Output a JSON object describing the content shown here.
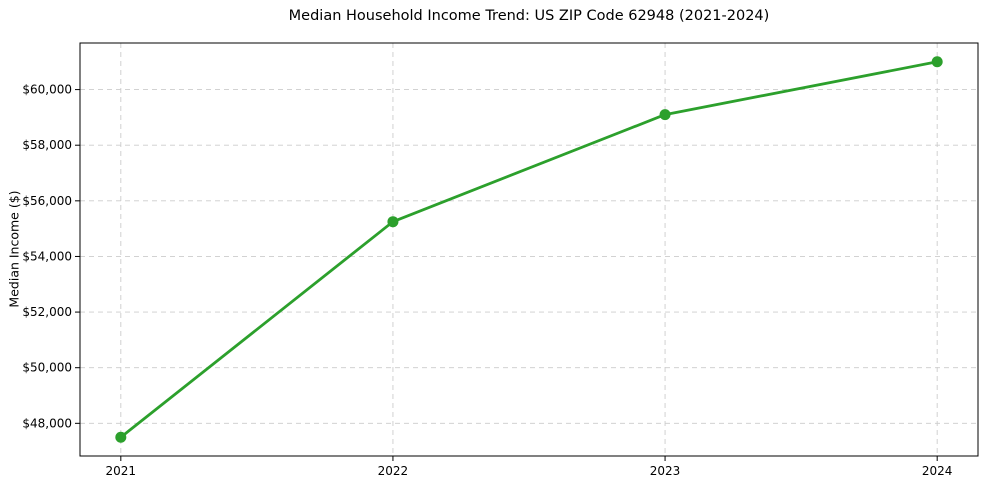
{
  "figure": {
    "background": "#ffffff",
    "frame_color": "#000000"
  },
  "chart_data": {
    "type": "line",
    "title": "Median Household Income Trend: US ZIP Code 62948 (2021-2024)",
    "xlabel": "",
    "ylabel": "Median Income ($)",
    "x": [
      2021,
      2022,
      2023,
      2024
    ],
    "x_tick_labels": [
      "2021",
      "2022",
      "2023",
      "2024"
    ],
    "series": [
      {
        "name": "Median Household Income",
        "values": [
          47500,
          55250,
          59100,
          61000
        ],
        "color": "#2ca02c",
        "marker": "circle",
        "marker_radius": 5.5,
        "line_width": 2.8
      }
    ],
    "xlim": [
      2020.85,
      2024.15
    ],
    "ylim": [
      46825,
      61675
    ],
    "yticks": [
      48000,
      50000,
      52000,
      54000,
      56000,
      58000,
      60000
    ],
    "y_tick_labels": [
      "$48,000",
      "$50,000",
      "$52,000",
      "$54,000",
      "$56,000",
      "$58,000",
      "$60,000"
    ],
    "grid": true,
    "grid_style": "dashed",
    "grid_color": "#cccccc",
    "tick_label_color": "#000000",
    "legend_position": "none"
  }
}
